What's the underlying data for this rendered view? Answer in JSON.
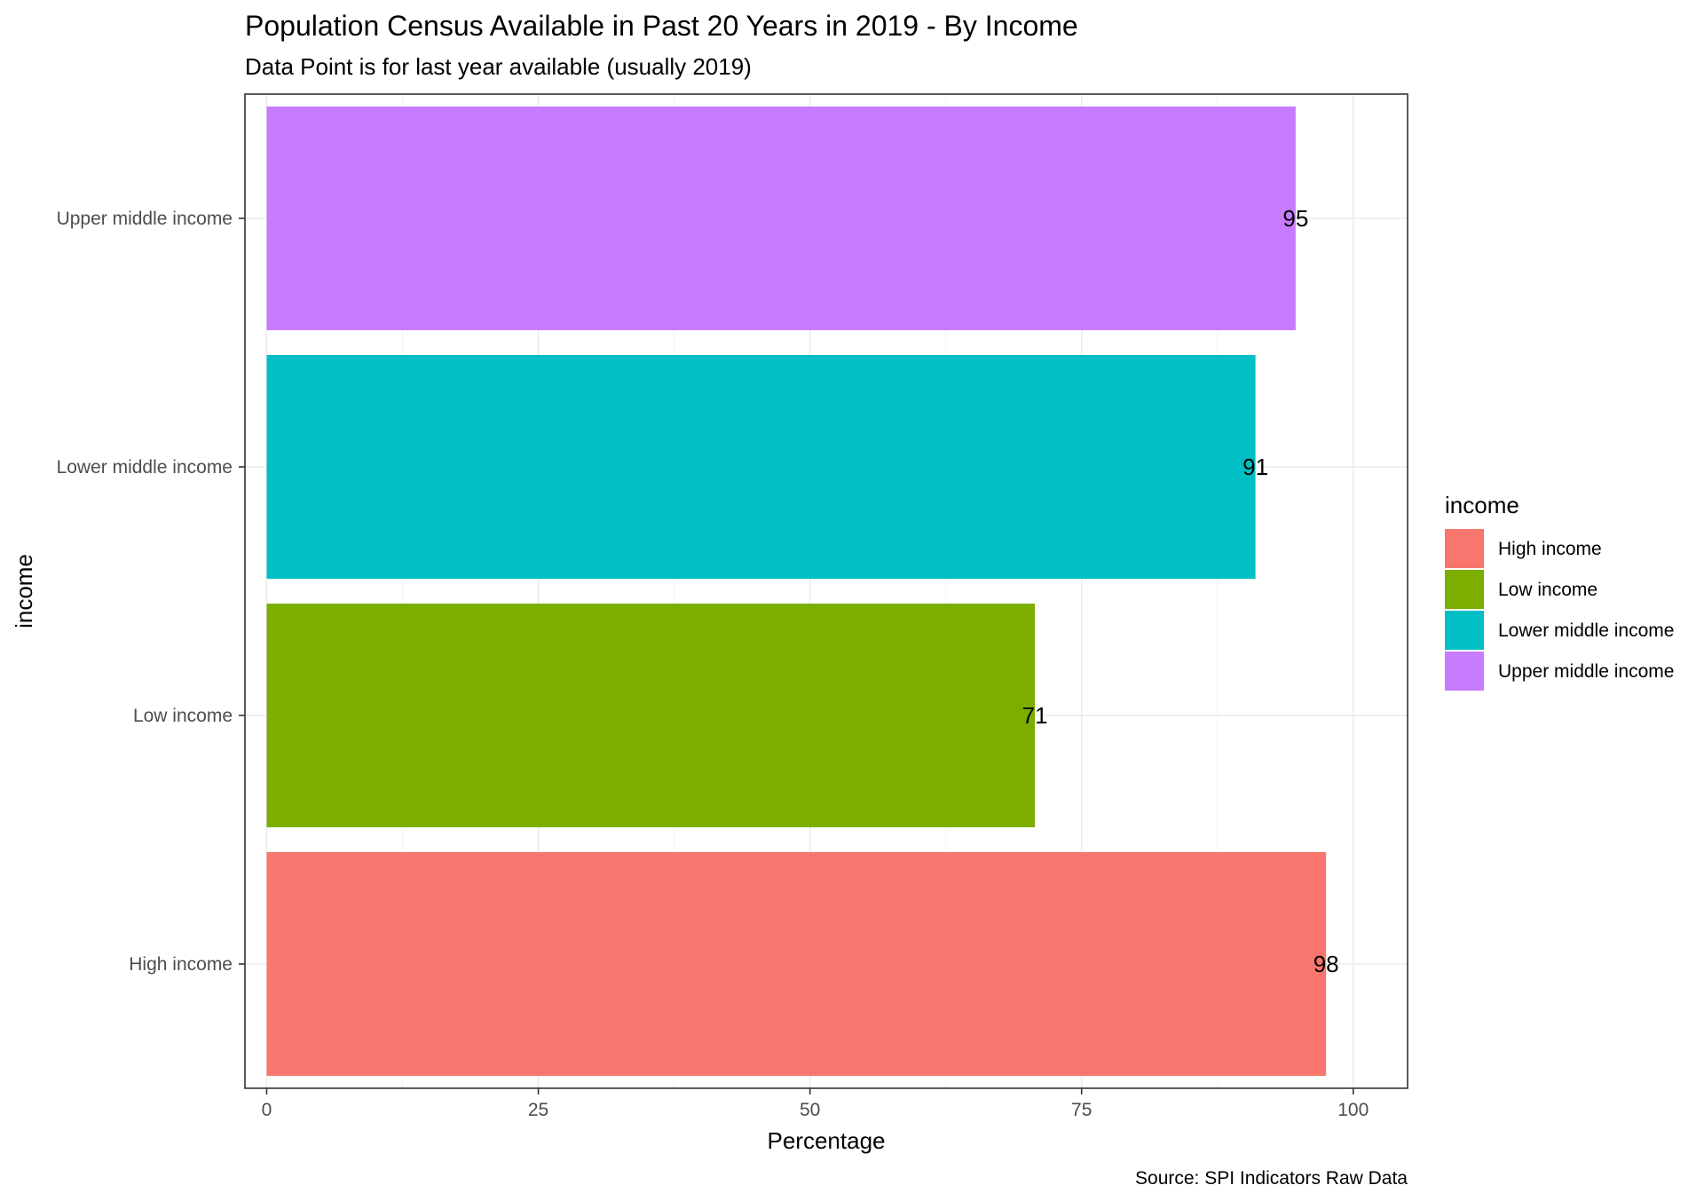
{
  "chart_data": {
    "type": "bar",
    "orientation": "horizontal",
    "title": "Population Census Available in Past 20 Years in 2019 - By Income",
    "subtitle": "Data Point is for last year available (usually 2019)",
    "xlabel": "Percentage",
    "ylabel": "income",
    "caption": "Source: SPI Indicators Raw Data",
    "categories": [
      "High income",
      "Low income",
      "Lower middle income",
      "Upper middle income"
    ],
    "values": [
      97.5,
      70.7,
      91.0,
      94.7
    ],
    "data_labels": [
      "98",
      "71",
      "91",
      "95"
    ],
    "colors": [
      "#F8766D",
      "#7CAE00",
      "#00BFC4",
      "#C77CFF"
    ],
    "xlim": [
      -2,
      105
    ],
    "xticks": [
      0,
      25,
      50,
      75,
      100
    ],
    "xtick_labels": [
      "0",
      "25",
      "50",
      "75",
      "100"
    ],
    "grid": true,
    "legend": {
      "title": "income",
      "placement": "right",
      "entries": [
        "High income",
        "Low income",
        "Lower middle income",
        "Upper middle income"
      ]
    }
  }
}
